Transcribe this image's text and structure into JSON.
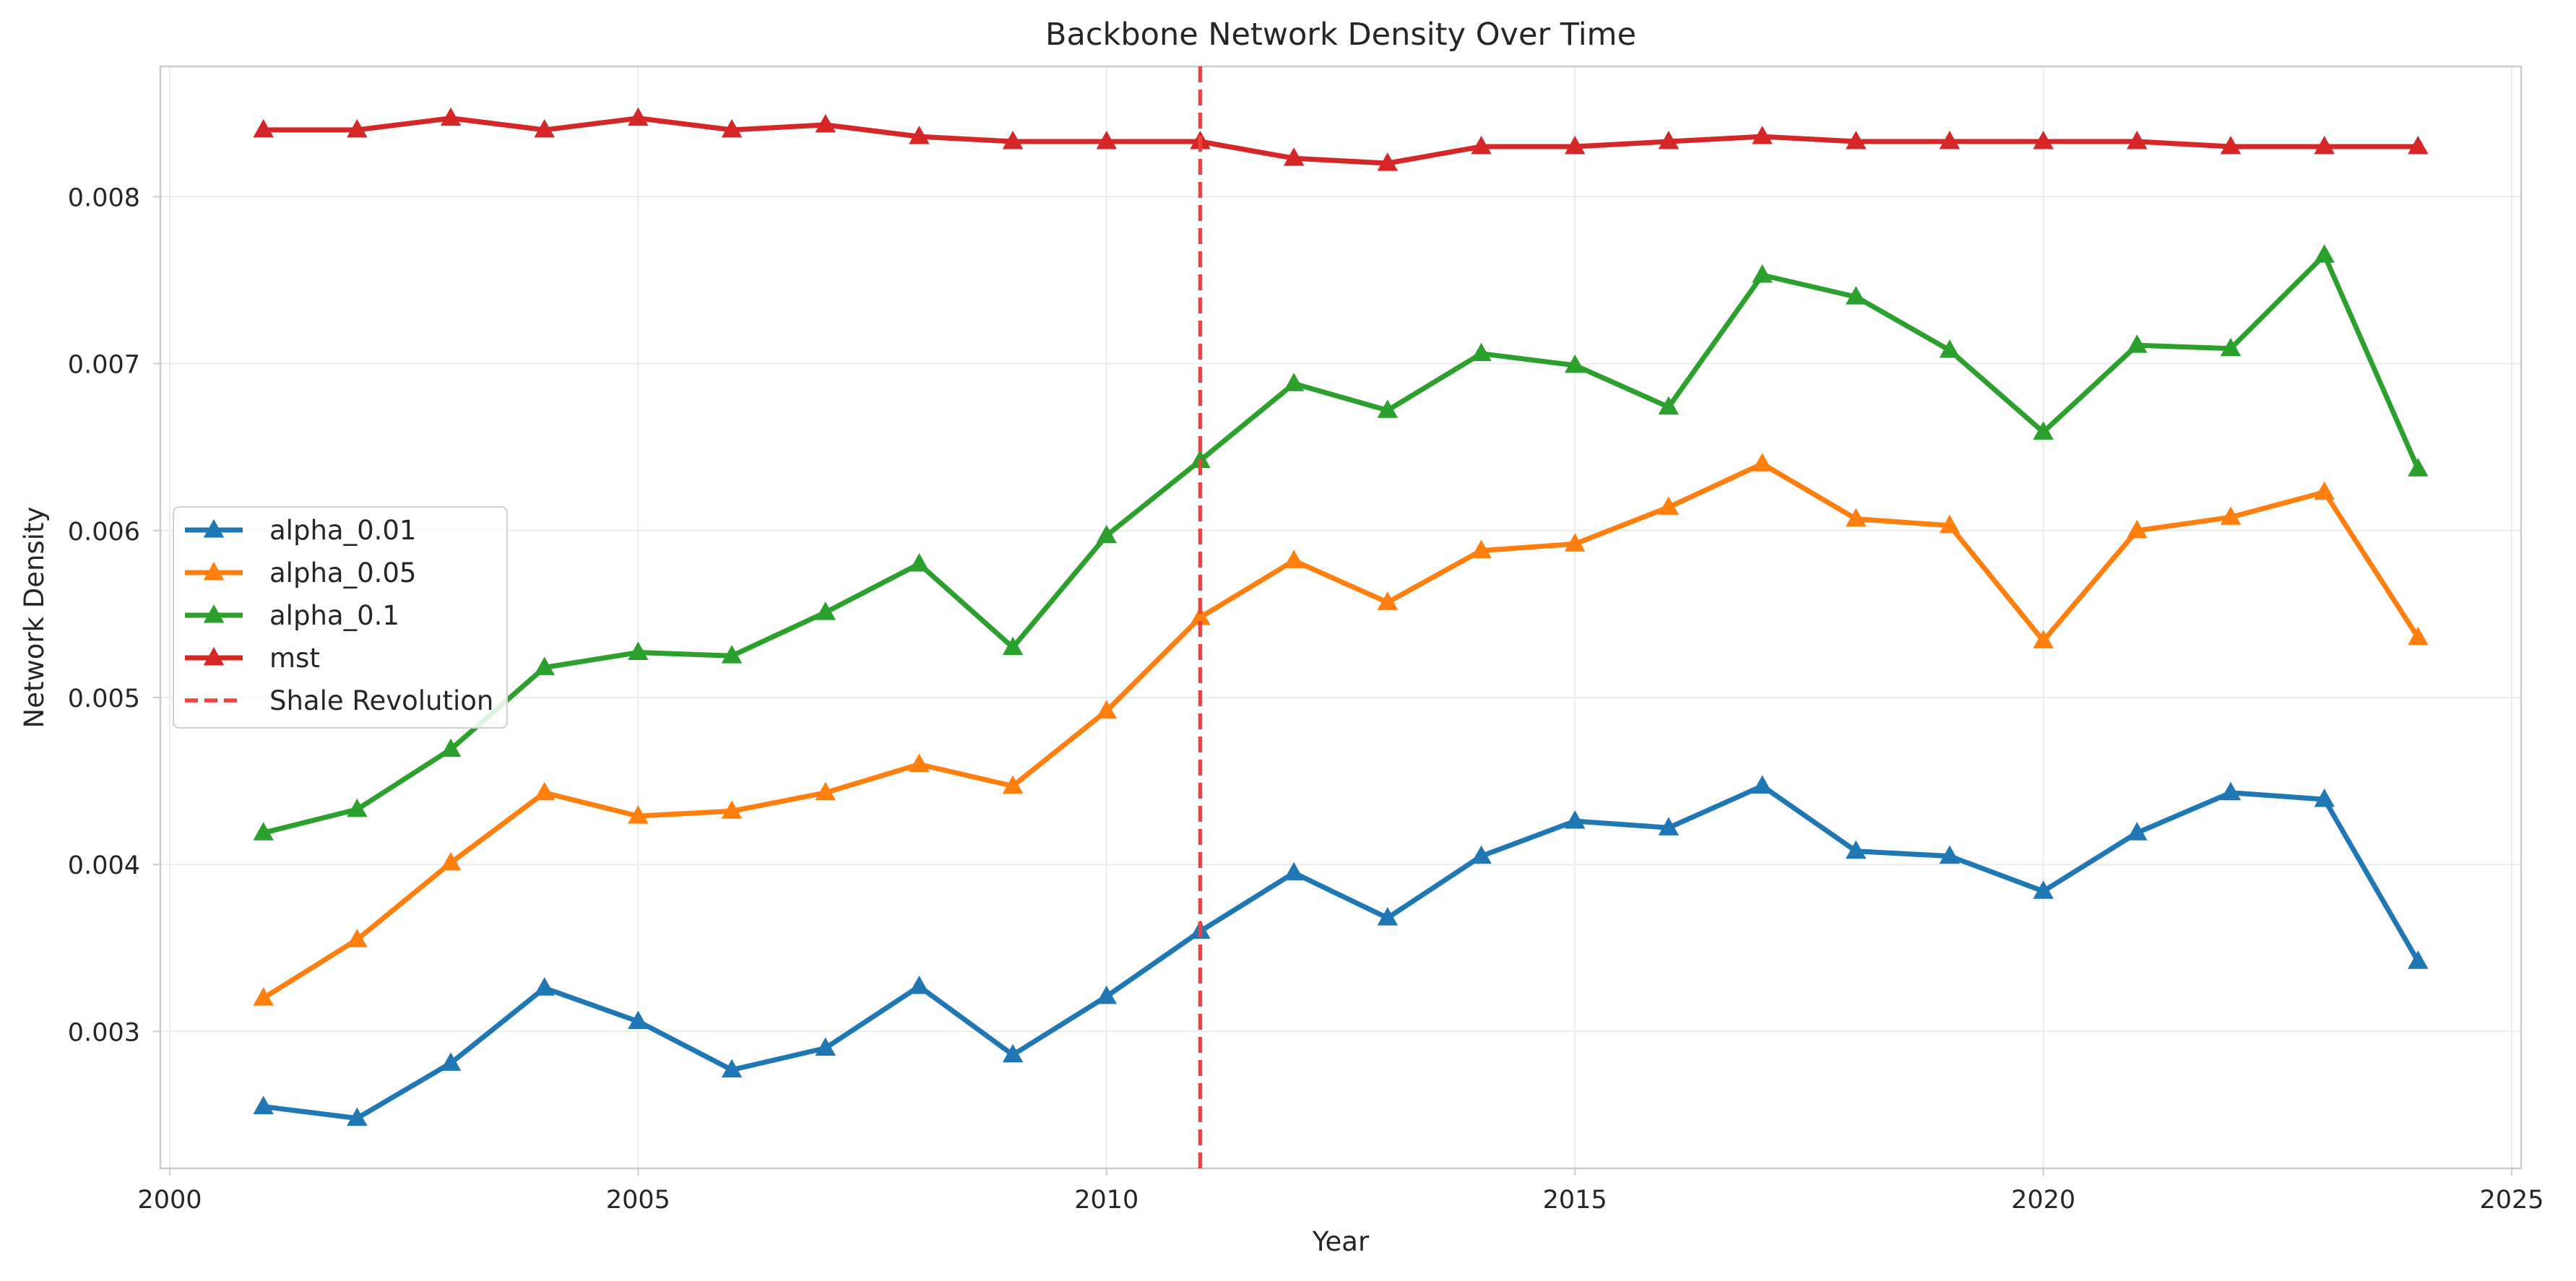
{
  "chart_data": {
    "type": "line",
    "title": "Backbone Network Density Over Time",
    "xlabel": "Year",
    "ylabel": "Network Density",
    "xlim": [
      1999.9,
      2025.1
    ],
    "ylim": [
      0.00218,
      0.00878
    ],
    "xticks": [
      2000,
      2005,
      2010,
      2015,
      2020,
      2025
    ],
    "yticks": [
      0.003,
      0.004,
      0.005,
      0.006,
      0.007,
      0.008
    ],
    "xtick_labels": [
      "2000",
      "2005",
      "2010",
      "2015",
      "2020",
      "2025"
    ],
    "ytick_labels": [
      "0.003",
      "0.004",
      "0.005",
      "0.006",
      "0.007",
      "0.008"
    ],
    "grid": true,
    "legend_position": "center-left",
    "x": [
      2001,
      2002,
      2003,
      2004,
      2005,
      2006,
      2007,
      2008,
      2009,
      2010,
      2011,
      2012,
      2013,
      2014,
      2015,
      2016,
      2017,
      2018,
      2019,
      2020,
      2021,
      2022,
      2023,
      2024
    ],
    "series": [
      {
        "name": "alpha_0.01",
        "color": "#1f77b4",
        "marker": "triangle-up",
        "values": [
          0.00255,
          0.00248,
          0.00281,
          0.00326,
          0.00306,
          0.00277,
          0.0029,
          0.00327,
          0.00286,
          0.00321,
          0.0036,
          0.00395,
          0.00368,
          0.00405,
          0.00426,
          0.00422,
          0.00447,
          0.00408,
          0.00405,
          0.00384,
          0.00419,
          0.00443,
          0.00439,
          0.00342
        ]
      },
      {
        "name": "alpha_0.05",
        "color": "#ff7f0e",
        "marker": "triangle-up",
        "values": [
          0.0032,
          0.00355,
          0.00401,
          0.00443,
          0.00429,
          0.00432,
          0.00443,
          0.0046,
          0.00447,
          0.00492,
          0.00548,
          0.00582,
          0.00557,
          0.00588,
          0.00592,
          0.00614,
          0.0064,
          0.00607,
          0.00603,
          0.00534,
          0.006,
          0.00608,
          0.00623,
          0.00536
        ]
      },
      {
        "name": "alpha_0.1",
        "color": "#2ca02c",
        "marker": "triangle-up",
        "values": [
          0.00419,
          0.00433,
          0.00469,
          0.00518,
          0.00527,
          0.00525,
          0.00551,
          0.0058,
          0.0053,
          0.00597,
          0.00642,
          0.00688,
          0.00672,
          0.00706,
          0.00699,
          0.00674,
          0.00753,
          0.0074,
          0.00708,
          0.00659,
          0.00711,
          0.00709,
          0.00765,
          0.00637
        ]
      },
      {
        "name": "mst",
        "color": "#d62728",
        "marker": "triangle-up",
        "values": [
          0.0084,
          0.0084,
          0.00847,
          0.0084,
          0.00847,
          0.0084,
          0.00843,
          0.00836,
          0.00833,
          0.00833,
          0.00833,
          0.00823,
          0.0082,
          0.0083,
          0.0083,
          0.00833,
          0.00836,
          0.00833,
          0.00833,
          0.00833,
          0.00833,
          0.0083,
          0.0083,
          0.0083
        ]
      }
    ],
    "vline": {
      "x": 2011,
      "label": "Shale Revolution",
      "color": "#f04040",
      "style": "dashed"
    }
  }
}
